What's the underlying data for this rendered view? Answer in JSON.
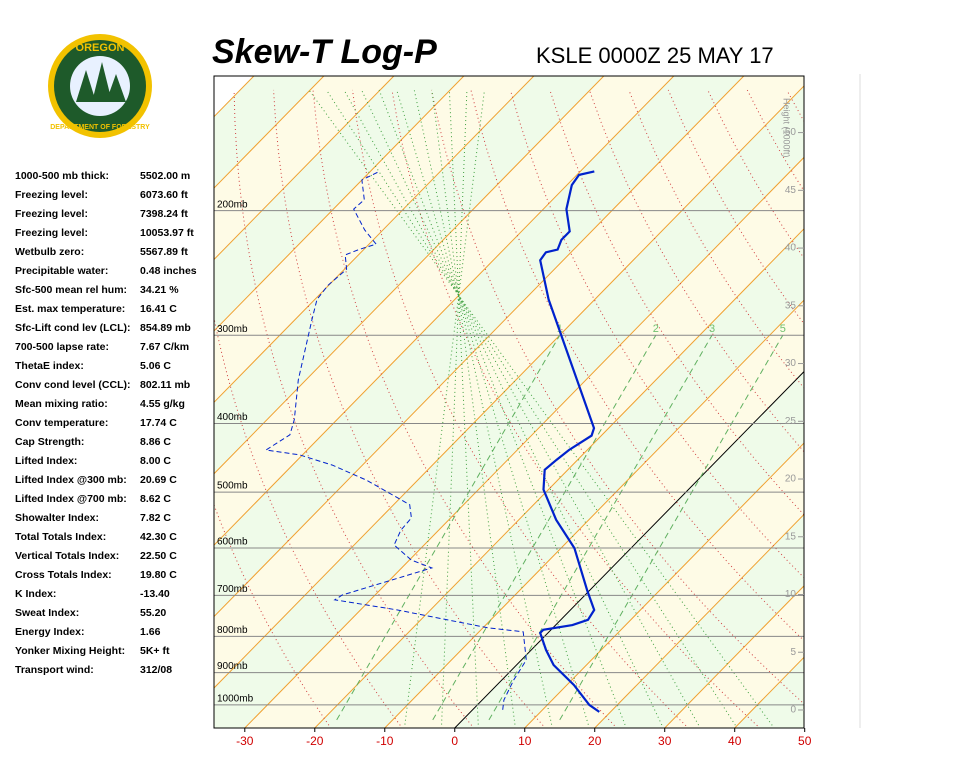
{
  "logo": {
    "top": "OREGON",
    "bottom": "DEPARTMENT OF FORESTRY"
  },
  "stats": [
    {
      "label": "1000-500 mb thick:",
      "value": "5502.00 m"
    },
    {
      "label": "Freezing level:",
      "value": "6073.60 ft"
    },
    {
      "label": "Freezing level:",
      "value": "7398.24 ft"
    },
    {
      "label": "Freezing level:",
      "value": "10053.97 ft"
    },
    {
      "label": "Wetbulb zero:",
      "value": "5567.89 ft"
    },
    {
      "label": "Precipitable water:",
      "value": "0.48 inches"
    },
    {
      "label": "Sfc-500 mean rel hum:",
      "value": "34.21 %"
    },
    {
      "label": "Est. max temperature:",
      "value": "16.41 C"
    },
    {
      "label": "Sfc-Lift cond lev (LCL):",
      "value": "854.89 mb"
    },
    {
      "label": "700-500 lapse rate:",
      "value": "7.67 C/km"
    },
    {
      "label": "ThetaE index:",
      "value": "5.06 C"
    },
    {
      "label": "Conv cond level (CCL):",
      "value": "802.11 mb"
    },
    {
      "label": "Mean mixing ratio:",
      "value": "4.55 g/kg"
    },
    {
      "label": "Conv temperature:",
      "value": "17.74 C"
    },
    {
      "label": "Cap Strength:",
      "value": "8.86 C"
    },
    {
      "label": "Lifted Index:",
      "value": "8.00 C"
    },
    {
      "label": "Lifted Index @300 mb:",
      "value": "20.69 C"
    },
    {
      "label": "Lifted Index @700 mb:",
      "value": "8.62 C"
    },
    {
      "label": "Showalter Index:",
      "value": "7.82 C"
    },
    {
      "label": "Total Totals Index:",
      "value": "42.30 C"
    },
    {
      "label": "Vertical Totals Index:",
      "value": "22.50 C"
    },
    {
      "label": "Cross Totals Index:",
      "value": "19.80 C"
    },
    {
      "label": "K Index:",
      "value": "-13.40"
    },
    {
      "label": "Sweat Index:",
      "value": "55.20"
    },
    {
      "label": "Energy Index:",
      "value": "1.66"
    },
    {
      "label": "Yonker Mixing Height:",
      "value": "5K+ ft"
    },
    {
      "label": "Transport wind:",
      "value": "312/08"
    }
  ],
  "chart_data": {
    "type": "skew-t",
    "title": "Skew-T Log-P",
    "subtitle": "KSLE 0000Z 25 MAY 17",
    "y2_label": "Height (1000ft)",
    "xlim": [
      -34.4,
      49.9
    ],
    "xticks": [
      -30,
      -20,
      -10,
      0,
      10,
      20,
      30,
      40,
      50
    ],
    "ylim": [
      1078,
      129
    ],
    "log_y": true,
    "yticks": [
      {
        "value": 200,
        "label": "200mb"
      },
      {
        "value": 300,
        "label": "300mb"
      },
      {
        "value": 400,
        "label": "400mb"
      },
      {
        "value": 500,
        "label": "500mb"
      },
      {
        "value": 600,
        "label": "600mb"
      },
      {
        "value": 700,
        "label": "700mb"
      },
      {
        "value": 800,
        "label": "800mb"
      },
      {
        "value": 900,
        "label": "900mb"
      },
      {
        "value": 1000,
        "label": "1000mb"
      }
    ],
    "y2lim": [
      -1.56,
      54.9
    ],
    "y2ticks": [
      0,
      5,
      10,
      15,
      20,
      25,
      30,
      35,
      40,
      45,
      50
    ],
    "mixing_ratio_labels": [
      1,
      2,
      3,
      5
    ],
    "series": [
      {
        "color": "#0022cc",
        "style": "solid",
        "pressure": [
          1023,
          1000,
          937,
          878,
          836,
          791,
          783,
          771,
          758,
          734,
          688,
          600,
          547,
          496,
          465,
          450,
          436,
          416,
          406,
          267,
          235,
          229,
          227,
          220,
          214,
          199,
          184,
          178,
          176
        ],
        "values": [
          18.4,
          16.0,
          11.0,
          5.3,
          2.1,
          -1.1,
          -1.1,
          2.4,
          3.9,
          3.4,
          -0.4,
          -8.1,
          -14.7,
          -20.7,
          -23.3,
          -23.0,
          -22.6,
          -21.4,
          -22.1,
          -46.6,
          -53.3,
          -53.6,
          -52.3,
          -53.1,
          -53.1,
          -56.7,
          -59.3,
          -59.7,
          -58.0
        ]
      },
      {
        "color": "#0022cc",
        "style": "dashed",
        "pressure": [
          1016,
          984,
          922,
          864,
          788,
          778,
          734,
          710,
          699,
          640,
          624,
          594,
          566,
          544,
          521,
          481,
          458,
          443,
          436,
          415,
          395,
          347,
          285,
          267,
          255,
          242,
          231,
          227,
          223,
          213,
          199,
          193,
          181,
          176
        ],
        "values": [
          4.3,
          3.1,
          1.7,
          0.7,
          -3.7,
          -9.3,
          -24.7,
          -35.1,
          -34.7,
          -25.7,
          -29.7,
          -34.3,
          -35.4,
          -35.6,
          -37.7,
          -47.3,
          -54.3,
          -60.4,
          -65.9,
          -64.6,
          -66.1,
          -71.1,
          -77.6,
          -79.7,
          -80.1,
          -79.7,
          -81.9,
          -80.7,
          -79.0,
          -82.6,
          -87.1,
          -86.9,
          -90,
          -88.7
        ]
      }
    ]
  }
}
